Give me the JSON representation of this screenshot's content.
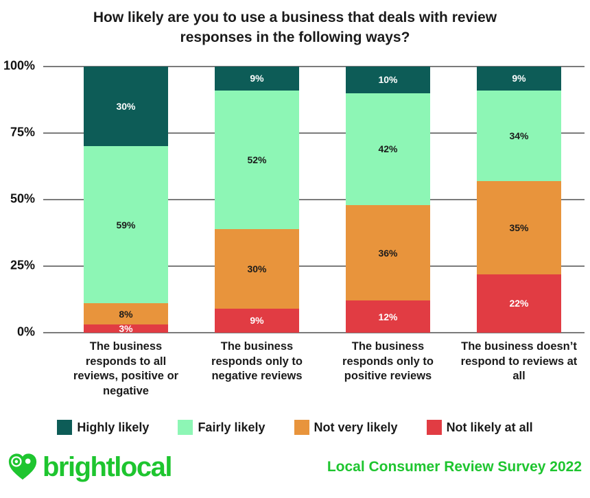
{
  "title": "How likely are you to use a business that deals with review responses in the following ways?",
  "chart_data": {
    "type": "bar",
    "subtype": "stacked-100-percent",
    "title": "How likely are you to use a business that deals with review responses in the following ways?",
    "categories": [
      "The business responds to all reviews, positive or negative",
      "The business responds only to negative reviews",
      "The business responds only to positive reviews",
      "The business doesn’t respond to reviews at all"
    ],
    "series": [
      {
        "name": "Highly likely",
        "color": "#0d5c57",
        "label_color": "#ffffff",
        "values": [
          30,
          9,
          10,
          9
        ]
      },
      {
        "name": "Fairly likely",
        "color": "#8df6b5",
        "label_color": "#1b1b1b",
        "values": [
          59,
          52,
          42,
          34
        ]
      },
      {
        "name": "Not very likely",
        "color": "#e8943c",
        "label_color": "#1b1b1b",
        "values": [
          8,
          30,
          36,
          35
        ]
      },
      {
        "name": "Not likely at all",
        "color": "#e13c43",
        "label_color": "#ffffff",
        "values": [
          3,
          9,
          12,
          22
        ]
      }
    ],
    "stack_order": "top-to-bottom",
    "y_ticks": [
      "100%",
      "75%",
      "50%",
      "25%",
      "0%"
    ],
    "ylim": [
      0,
      100
    ],
    "grid": true,
    "gridline_color": "#7b7b7b",
    "value_suffix": "%",
    "legend_position": "bottom"
  },
  "footer": {
    "brand": "brightlocal",
    "brand_color": "#1ec52f",
    "source": "Local Consumer Review Survey 2022"
  }
}
